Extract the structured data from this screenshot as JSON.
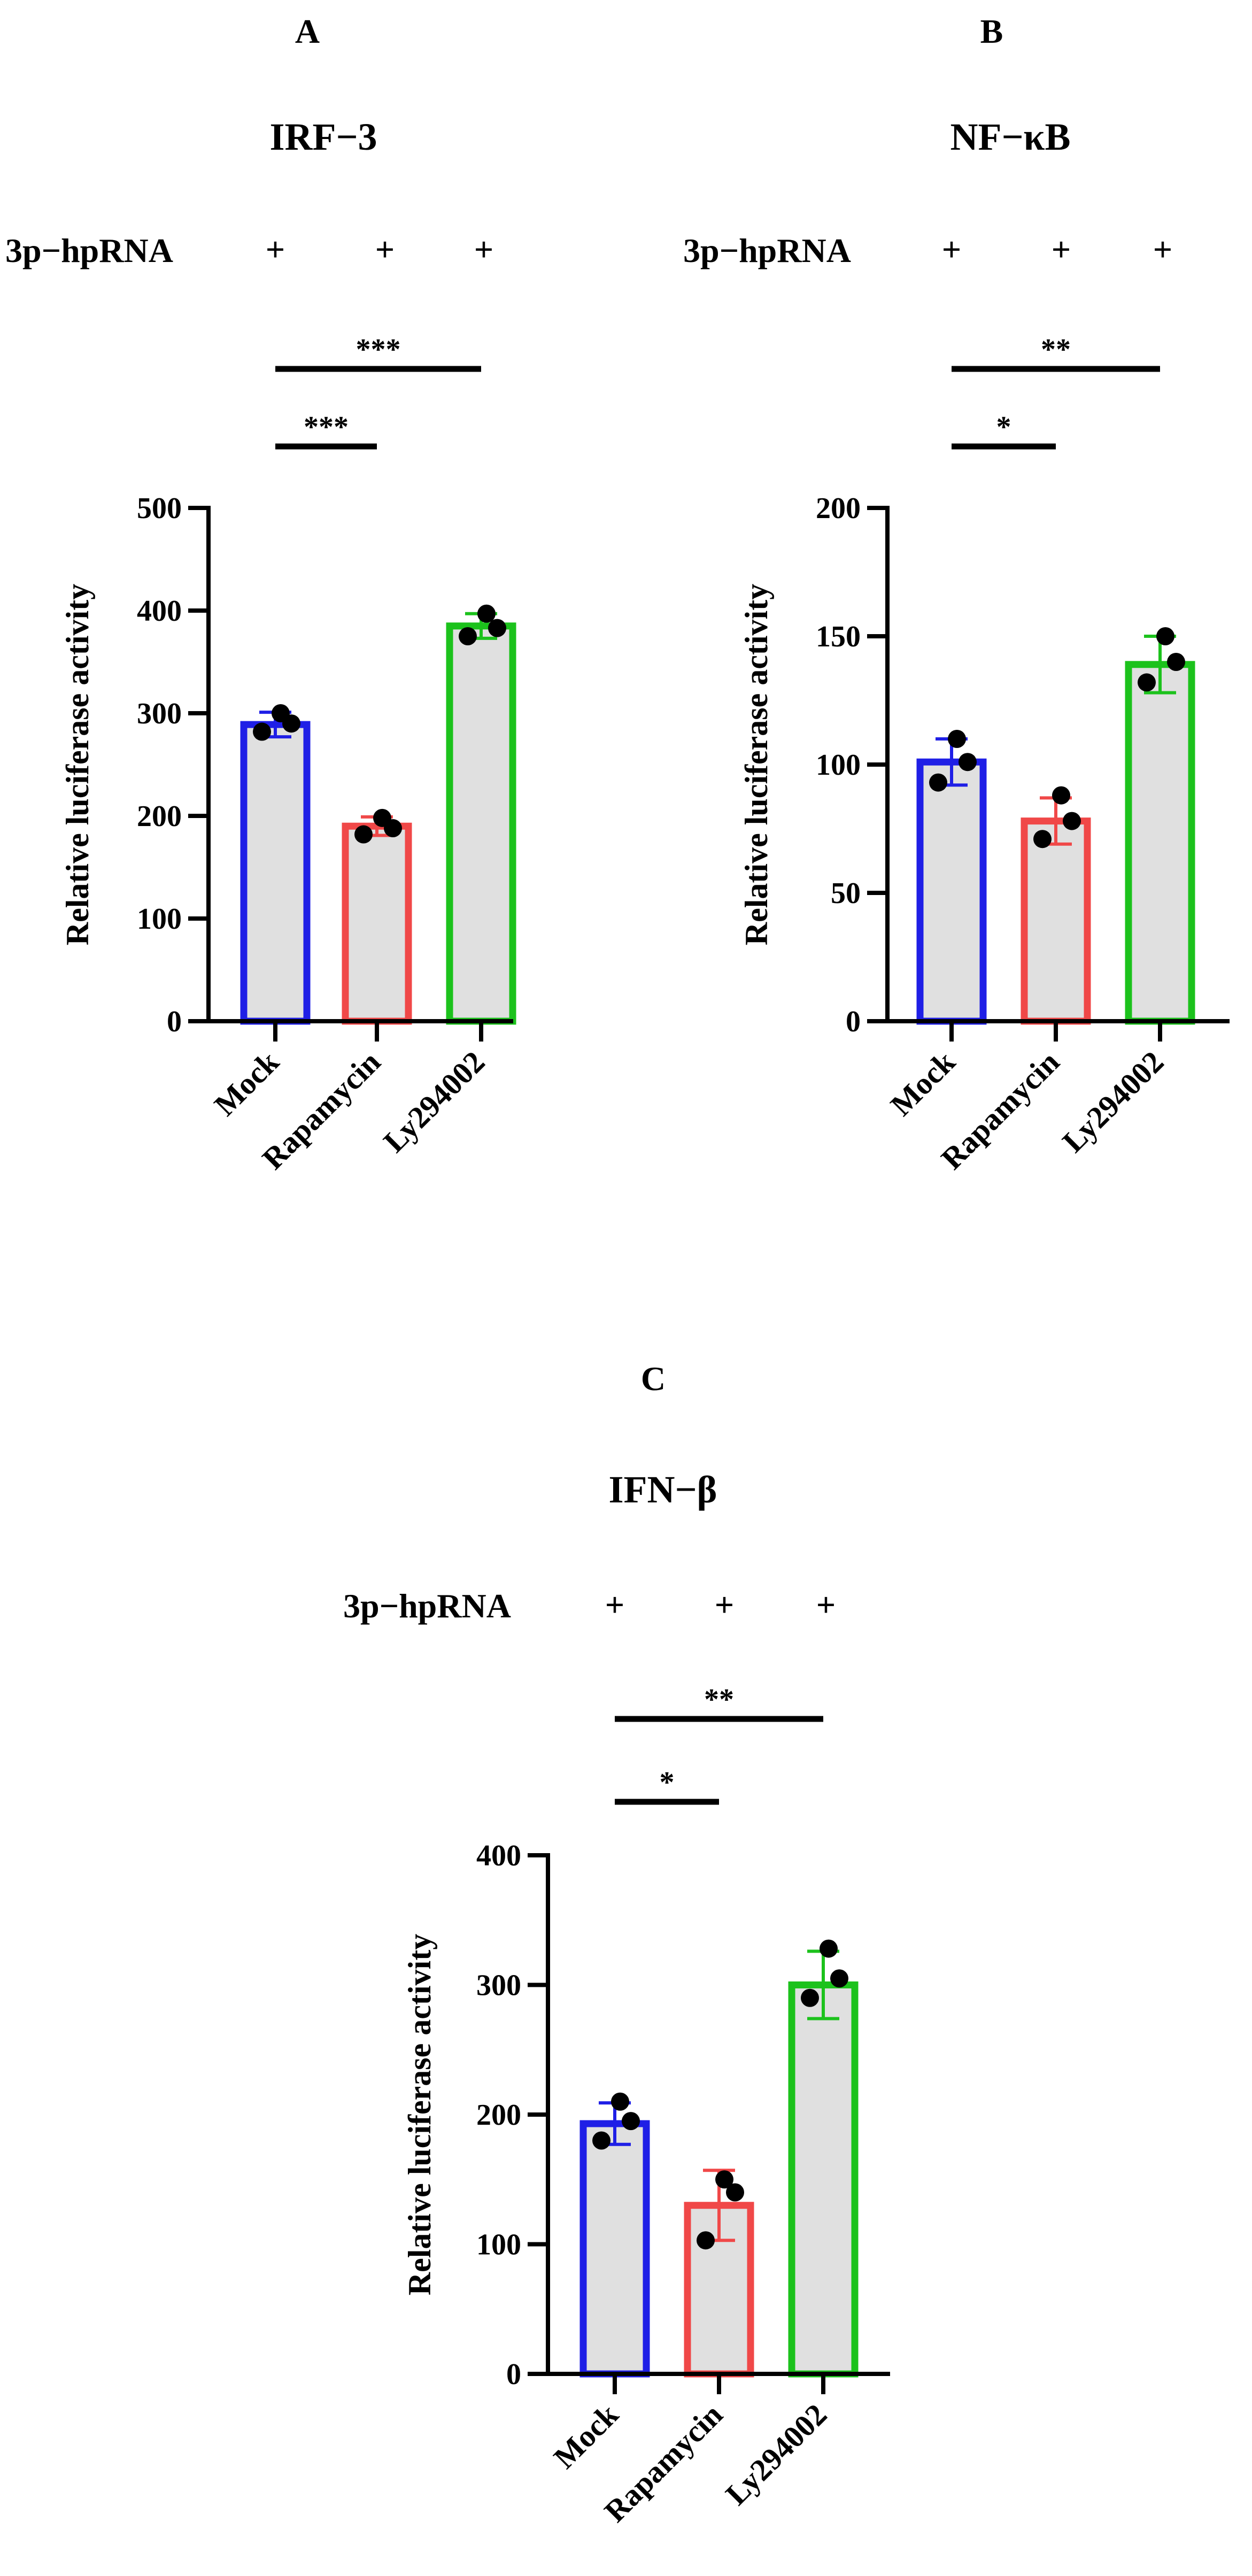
{
  "chart_data": [
    {
      "type": "bar",
      "panel": "A",
      "title": "IRF−3",
      "treatment": {
        "label": "3p−hpRNA",
        "marks": [
          "+",
          "+",
          "+"
        ]
      },
      "categories": [
        "Mock",
        "Rapamycin",
        "Ly294002"
      ],
      "values": [
        289,
        190,
        385
      ],
      "errors": [
        12,
        9,
        12
      ],
      "points": [
        [
          300,
          290,
          282
        ],
        [
          198,
          188,
          182
        ],
        [
          397,
          383,
          375
        ]
      ],
      "colors": [
        "#1f1fe6",
        "#f04848",
        "#1cc21c"
      ],
      "ylabel": "Relative luciferase activity",
      "ylim": [
        0,
        500
      ],
      "yticks": [
        0,
        100,
        200,
        300,
        400,
        500
      ],
      "significance": [
        {
          "from": 0,
          "to": 1,
          "label": "***"
        },
        {
          "from": 0,
          "to": 2,
          "label": "***"
        }
      ]
    },
    {
      "type": "bar",
      "panel": "B",
      "title": "NF−κB",
      "treatment": {
        "label": "3p−hpRNA",
        "marks": [
          "+",
          "+",
          "+"
        ]
      },
      "categories": [
        "Mock",
        "Rapamycin",
        "Ly294002"
      ],
      "values": [
        101,
        78,
        139
      ],
      "errors": [
        9,
        9,
        11
      ],
      "points": [
        [
          110,
          101,
          93
        ],
        [
          88,
          78,
          71
        ],
        [
          150,
          140,
          132
        ]
      ],
      "colors": [
        "#1f1fe6",
        "#f04848",
        "#1cc21c"
      ],
      "ylabel": "Relative luciferase activity",
      "ylim": [
        0,
        200
      ],
      "yticks": [
        0,
        50,
        100,
        150,
        200
      ],
      "significance": [
        {
          "from": 0,
          "to": 1,
          "label": "*"
        },
        {
          "from": 0,
          "to": 2,
          "label": "**"
        }
      ]
    },
    {
      "type": "bar",
      "panel": "C",
      "title": "IFN−β",
      "treatment": {
        "label": "3p−hpRNA",
        "marks": [
          "+",
          "+",
          "+"
        ]
      },
      "categories": [
        "Mock",
        "Rapamycin",
        "Ly294002"
      ],
      "values": [
        193,
        130,
        300
      ],
      "errors": [
        16,
        27,
        26
      ],
      "points": [
        [
          210,
          195,
          180
        ],
        [
          150,
          140,
          103
        ],
        [
          328,
          305,
          290
        ]
      ],
      "colors": [
        "#1f1fe6",
        "#f04848",
        "#1cc21c"
      ],
      "ylabel": "Relative luciferase activity",
      "ylim": [
        0,
        400
      ],
      "yticks": [
        0,
        100,
        200,
        300,
        400
      ],
      "significance": [
        {
          "from": 0,
          "to": 1,
          "label": "*"
        },
        {
          "from": 0,
          "to": 2,
          "label": "**"
        }
      ]
    }
  ]
}
